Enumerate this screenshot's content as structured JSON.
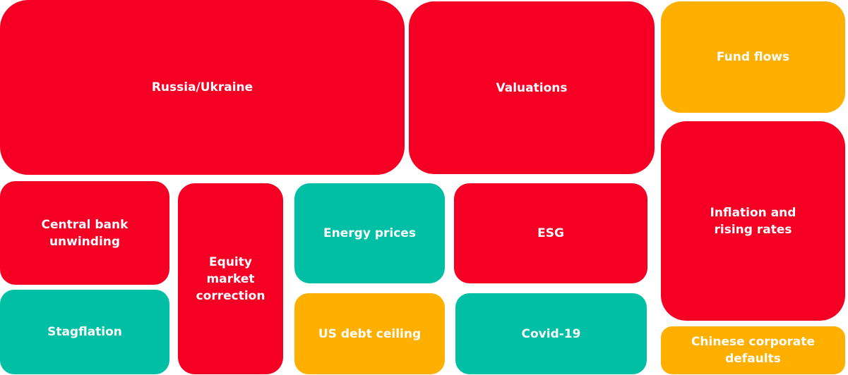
{
  "colors": {
    "red": "#f50024",
    "orange": "#ffaf00",
    "teal": "#00bfa5"
  },
  "tiles": {
    "russia_ukraine": "Russia/Ukraine",
    "valuations": "Valuations",
    "fund_flows": "Fund flows",
    "inflation": "Inflation and\nrising rates",
    "central_bank": "Central bank\nunwinding",
    "equity_correction": "Equity\nmarket\ncorrection",
    "energy_prices": "Energy prices",
    "esg": "ESG",
    "stagflation": "Stagflation",
    "us_debt_ceiling": "US debt ceiling",
    "covid": "Covid-19",
    "chinese_defaults": "Chinese corporate\ndefaults"
  }
}
